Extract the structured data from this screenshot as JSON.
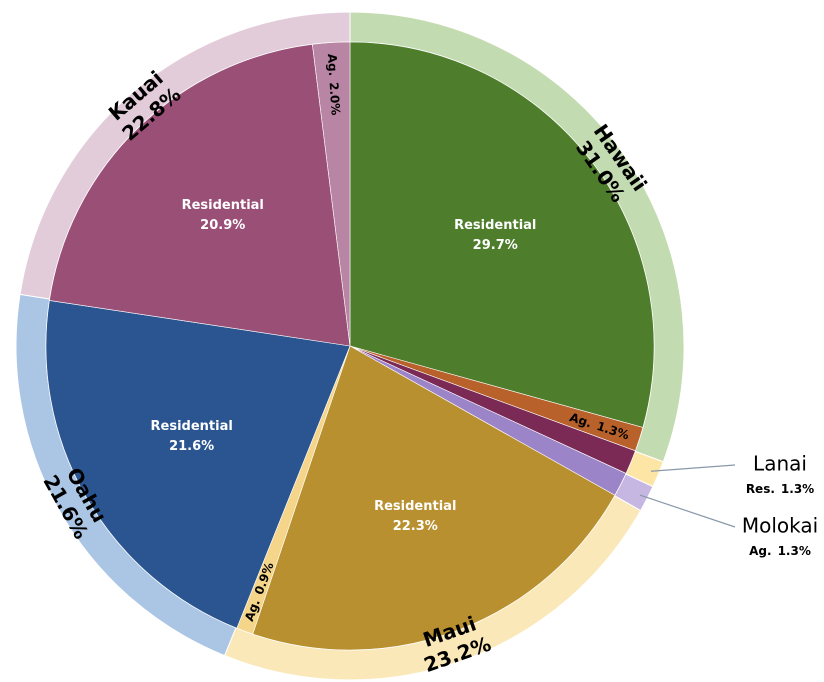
{
  "chart_data": {
    "type": "nested-pie",
    "groups": [
      {
        "name": "Hawaii",
        "value": 31.0,
        "value_label": "31.0%",
        "color": "#c3dbb0",
        "children": [
          {
            "name": "Residential",
            "value": 29.7,
            "value_label": "29.7%",
            "color": "#4e7d2b"
          },
          {
            "name": "Ag.",
            "value": 1.3,
            "value_label": "1.3%",
            "color": "#b8612a"
          }
        ]
      },
      {
        "name": "Lanai",
        "value": 1.3,
        "color": "#fde6a5",
        "children": [
          {
            "name": "Res.",
            "value": 1.3,
            "value_label": "1.3%",
            "color": "#7a2a55"
          }
        ]
      },
      {
        "name": "Molokai",
        "value": 1.3,
        "color": "#c6b6e2",
        "children": [
          {
            "name": "Ag.",
            "value": 1.3,
            "value_label": "1.3%",
            "color": "#9c84c8"
          }
        ]
      },
      {
        "name": "Maui",
        "value": 23.2,
        "value_label": "23.2%",
        "color": "#fbe8b8",
        "children": [
          {
            "name": "Residential",
            "value": 22.3,
            "value_label": "22.3%",
            "color": "#b8902f"
          },
          {
            "name": "Ag.",
            "value": 0.9,
            "value_label": "0.9%",
            "color": "#f5d58a"
          }
        ]
      },
      {
        "name": "Oahu",
        "value": 21.6,
        "value_label": "21.6%",
        "color": "#abc5e5",
        "children": [
          {
            "name": "Residential",
            "value": 21.6,
            "value_label": "21.6%",
            "color": "#2b5591"
          }
        ]
      },
      {
        "name": "Kauai",
        "value": 22.8,
        "value_label": "22.8%",
        "color": "#e3ccda",
        "children": [
          {
            "name": "Residential",
            "value": 20.9,
            "value_label": "20.9%",
            "color": "#9a4f77"
          },
          {
            "name": "Ag.",
            "value": 2.0,
            "value_label": "2.0%",
            "color": "#b985a4"
          }
        ]
      }
    ]
  }
}
